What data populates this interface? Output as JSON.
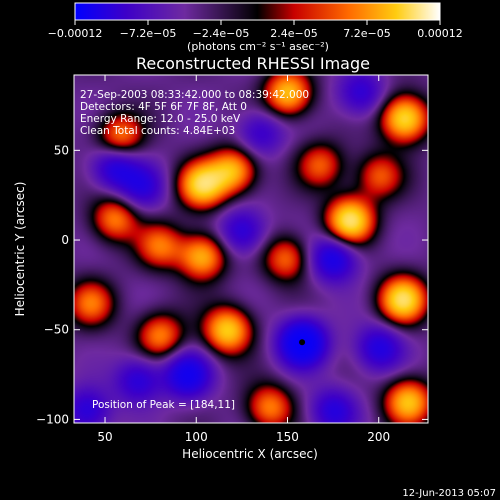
{
  "chart_data": {
    "type": "heatmap",
    "title": "Reconstructed RHESSI Image",
    "xlabel": "Heliocentric X (arcsec)",
    "ylabel": "Heliocentric Y (arcsec)",
    "xlim": [
      33,
      227
    ],
    "ylim": [
      -102,
      92
    ],
    "x_ticks": [
      50,
      100,
      150,
      200
    ],
    "x_tick_labels": [
      "50",
      "100",
      "150",
      "200"
    ],
    "y_ticks": [
      50,
      0,
      -50,
      -100
    ],
    "y_tick_labels": [
      "50",
      "0",
      "−50",
      "−100"
    ],
    "colorbar": {
      "range": [
        -0.00012,
        0.00012
      ],
      "ticks": [
        -0.00012,
        -7.2e-05,
        -2.4e-05,
        2.4e-05,
        7.2e-05,
        0.00012
      ],
      "tick_labels": [
        "−0.00012",
        "−7.2e−05",
        "−2.4e−05",
        "2.4e−05",
        "7.2e−05",
        "0.00012"
      ],
      "units_label": "(photons cm⁻² s⁻¹ asec⁻²)",
      "colors": [
        "#0000ff",
        "#3d00c8",
        "#6e2aa0",
        "#000000",
        "#c80000",
        "#ff6a00",
        "#ffcc10",
        "#ffffff"
      ]
    },
    "annotations": [
      "27-Sep-2003 08:33:42.000 to 08:39:42.000",
      "Detectors: 4F 5F 6F 7F 8F, Att 0",
      "Energy Range: 12.0 - 25.0 keV",
      "Clean     Total counts: 4.84E+03"
    ],
    "peak_label": "Position of Peak = [184,11]",
    "marker": {
      "x": 158,
      "y": -57
    },
    "blobs": [
      {
        "x": 184,
        "y": 11,
        "v": 1.0
      },
      {
        "x": 213,
        "y": -33,
        "v": 0.95
      },
      {
        "x": 214,
        "y": 68,
        "v": 0.95
      },
      {
        "x": 150,
        "y": 82,
        "v": 0.8
      },
      {
        "x": 103,
        "y": 31,
        "v": 0.9
      },
      {
        "x": 120,
        "y": 39,
        "v": 0.75
      },
      {
        "x": 55,
        "y": 12,
        "v": 0.6
      },
      {
        "x": 58,
        "y": 58,
        "v": 0.6
      },
      {
        "x": 103,
        "y": -9,
        "v": 0.75
      },
      {
        "x": 80,
        "y": -3,
        "v": 0.55
      },
      {
        "x": 117,
        "y": -50,
        "v": 0.85
      },
      {
        "x": 80,
        "y": -53,
        "v": 0.6
      },
      {
        "x": 149,
        "y": -10,
        "v": 0.55
      },
      {
        "x": 200,
        "y": 36,
        "v": 0.5
      },
      {
        "x": 216,
        "y": -90,
        "v": 0.8
      },
      {
        "x": 140,
        "y": -93,
        "v": 0.6
      },
      {
        "x": 168,
        "y": 42,
        "v": 0.5
      },
      {
        "x": 42,
        "y": -35,
        "v": 0.55
      },
      {
        "x": 158,
        "y": -57,
        "v": -1.0
      },
      {
        "x": 55,
        "y": 41,
        "v": -0.55
      },
      {
        "x": 175,
        "y": -10,
        "v": -0.65
      },
      {
        "x": 125,
        "y": 5,
        "v": -0.5
      },
      {
        "x": 95,
        "y": -75,
        "v": -0.7
      },
      {
        "x": 200,
        "y": -60,
        "v": -0.55
      },
      {
        "x": 68,
        "y": -78,
        "v": -0.5
      },
      {
        "x": 190,
        "y": 82,
        "v": -0.45
      },
      {
        "x": 70,
        "y": 30,
        "v": -0.45
      },
      {
        "x": 135,
        "y": 60,
        "v": -0.4
      },
      {
        "x": 40,
        "y": -95,
        "v": -0.5
      },
      {
        "x": 175,
        "y": -95,
        "v": -0.5
      }
    ]
  },
  "footer_timestamp": "12-Jun-2013 05:07"
}
